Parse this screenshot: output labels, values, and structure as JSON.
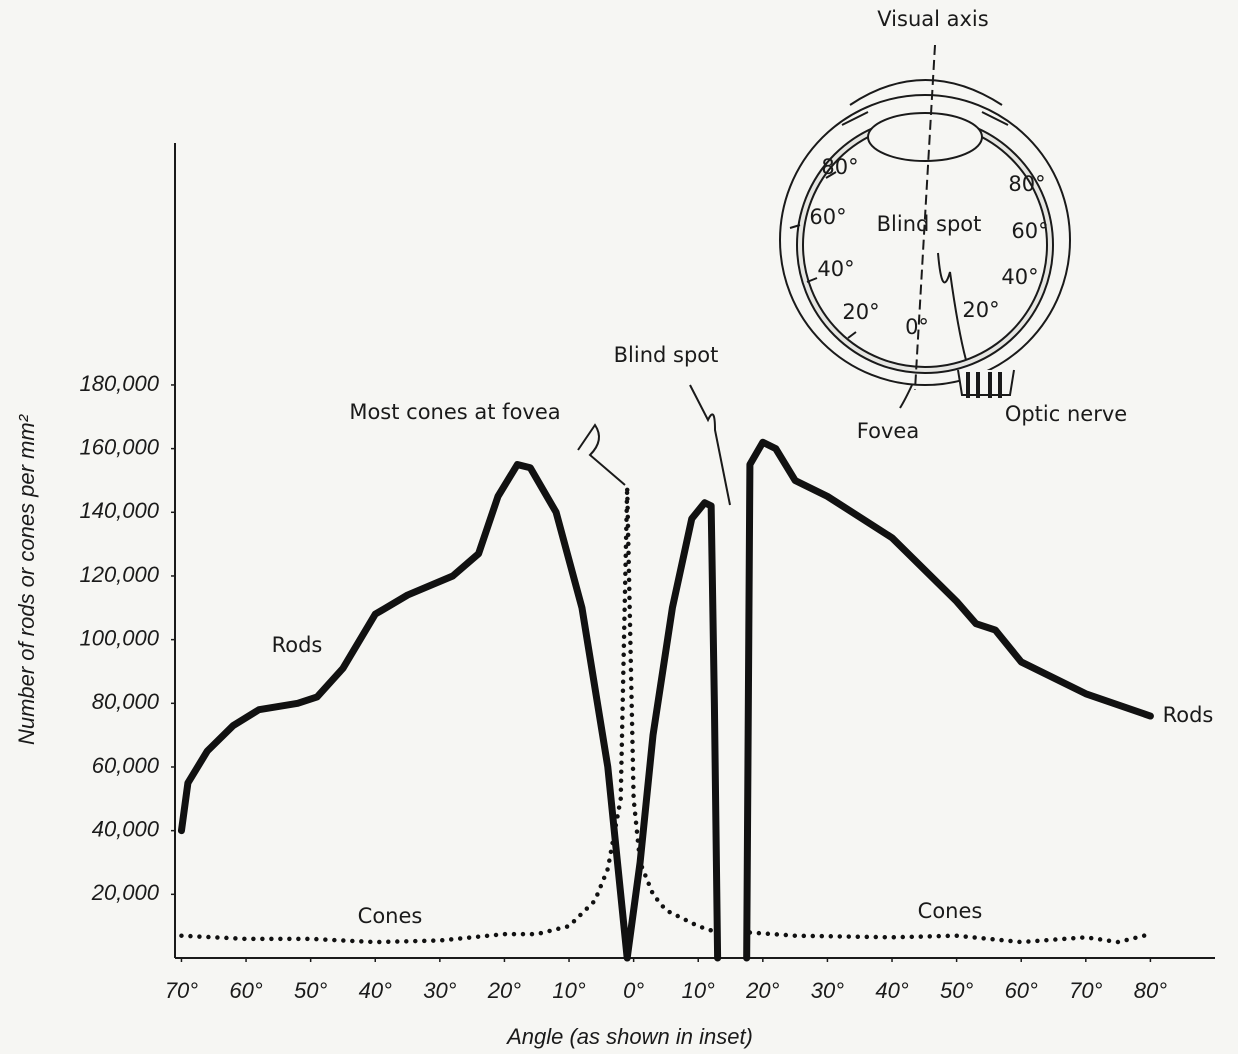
{
  "chart_data": {
    "type": "line",
    "ylabel": "Number of rods or cones per mm²",
    "xlabel": "Angle (as shown in inset)",
    "xlim": [
      -71,
      90
    ],
    "ylim": [
      0,
      256000
    ],
    "xticks": [
      {
        "value": -70,
        "label": "70°"
      },
      {
        "value": -60,
        "label": "60°"
      },
      {
        "value": -50,
        "label": "50°"
      },
      {
        "value": -40,
        "label": "40°"
      },
      {
        "value": -30,
        "label": "30°"
      },
      {
        "value": -20,
        "label": "20°"
      },
      {
        "value": -10,
        "label": "10°"
      },
      {
        "value": 0,
        "label": "0°"
      },
      {
        "value": 10,
        "label": "10°"
      },
      {
        "value": 20,
        "label": "20°"
      },
      {
        "value": 30,
        "label": "30°"
      },
      {
        "value": 40,
        "label": "40°"
      },
      {
        "value": 50,
        "label": "50°"
      },
      {
        "value": 60,
        "label": "60°"
      },
      {
        "value": 70,
        "label": "70°"
      },
      {
        "value": 80,
        "label": "80°"
      }
    ],
    "yticks": [
      {
        "value": 20000,
        "label": "20,000"
      },
      {
        "value": 40000,
        "label": "40,000"
      },
      {
        "value": 60000,
        "label": "60,000"
      },
      {
        "value": 80000,
        "label": "80,000"
      },
      {
        "value": 100000,
        "label": "100,000"
      },
      {
        "value": 120000,
        "label": "120,000"
      },
      {
        "value": 140000,
        "label": "140,000"
      },
      {
        "value": 160000,
        "label": "160,000"
      },
      {
        "value": 180000,
        "label": "180,000"
      }
    ],
    "series": [
      {
        "name": "Rods",
        "color": "#111111",
        "style": "solid",
        "x": [
          -70,
          -69,
          -66,
          -62,
          -58,
          -52,
          -49,
          -45,
          -40,
          -35,
          -28,
          -24,
          -21,
          -18,
          -16,
          -12,
          -8,
          -4,
          -1,
          1,
          3,
          6,
          9,
          11,
          12,
          12.5,
          13,
          15,
          17.5,
          18,
          20,
          22,
          25,
          30,
          40,
          50,
          53,
          56,
          60,
          70,
          80
        ],
        "values": [
          40000,
          55000,
          65000,
          73000,
          78000,
          80000,
          82000,
          91000,
          108000,
          114000,
          120000,
          127000,
          145000,
          155000,
          154000,
          140000,
          110000,
          60000,
          0,
          30000,
          70000,
          110000,
          138000,
          143000,
          142000,
          80000,
          0,
          null,
          0,
          155000,
          162000,
          160000,
          150000,
          145000,
          132000,
          112000,
          105000,
          103000,
          93000,
          83000,
          76000
        ]
      },
      {
        "name": "Cones",
        "color": "#111111",
        "style": "dotted",
        "x": [
          -70,
          -60,
          -50,
          -40,
          -30,
          -20,
          -15,
          -10,
          -6,
          -4,
          -2,
          -1,
          0,
          1,
          3,
          5,
          10,
          13,
          15,
          18,
          25,
          40,
          50,
          60,
          70,
          75,
          80
        ],
        "values": [
          7000,
          6000,
          6000,
          5000,
          5500,
          7500,
          7500,
          10000,
          18000,
          28000,
          50000,
          148000,
          50000,
          30000,
          20000,
          15000,
          10000,
          8000,
          null,
          8000,
          7000,
          6500,
          7000,
          5000,
          6500,
          5000,
          7500
        ]
      }
    ],
    "annotations": [
      "Most cones at fovea",
      "Blind spot",
      "Rods",
      "Cones"
    ]
  },
  "inset": {
    "labels": [
      "Visual axis",
      "80°",
      "60°",
      "40°",
      "20°",
      "0°",
      "20°",
      "40°",
      "60°",
      "80°",
      "Blind spot",
      "Fovea",
      "Optic nerve"
    ]
  }
}
